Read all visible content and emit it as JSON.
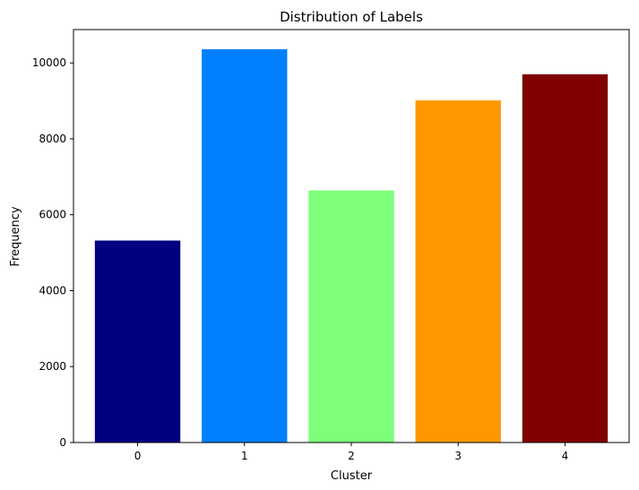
{
  "chart_data": {
    "type": "bar",
    "title": "Distribution of Labels",
    "xlabel": "Cluster",
    "ylabel": "Frequency",
    "categories": [
      "0",
      "1",
      "2",
      "3",
      "4"
    ],
    "values": [
      5320,
      10360,
      6640,
      9010,
      9700
    ],
    "colors": [
      "#000080",
      "#0080ff",
      "#7dff7a",
      "#ff9800",
      "#800000"
    ],
    "ylim": [
      0,
      10878
    ],
    "yticks": [
      0,
      2000,
      4000,
      6000,
      8000,
      10000
    ],
    "grid": false,
    "legend": "none"
  }
}
